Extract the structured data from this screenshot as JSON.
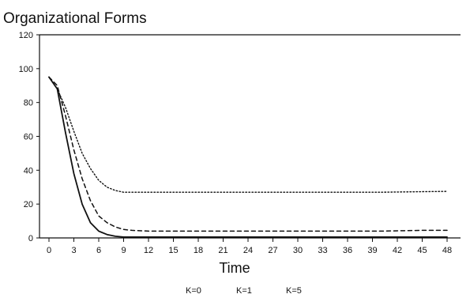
{
  "chart_data": {
    "type": "line",
    "title": "Organizational Forms",
    "xlabel": "Time",
    "ylabel": "",
    "xlim": [
      0,
      50
    ],
    "ylim": [
      0,
      120
    ],
    "xticks": [
      0,
      3,
      6,
      9,
      12,
      15,
      18,
      21,
      24,
      27,
      30,
      33,
      36,
      39,
      42,
      45,
      48
    ],
    "yticks": [
      0,
      20,
      40,
      60,
      80,
      100,
      120
    ],
    "grid": false,
    "legend_position": "bottom-center",
    "series": [
      {
        "name": "K=0",
        "style": "solid",
        "x": [
          0,
          1,
          2,
          3,
          4,
          5,
          6,
          7,
          8,
          9,
          12,
          20,
          30,
          40,
          48
        ],
        "y": [
          95,
          88,
          62,
          38,
          20,
          9,
          4,
          2,
          1,
          0.5,
          0.5,
          0.5,
          0.5,
          0.5,
          0.5
        ]
      },
      {
        "name": "K=1",
        "style": "dashed",
        "x": [
          0,
          1,
          2,
          3,
          4,
          5,
          6,
          7,
          8,
          9,
          10,
          12,
          15,
          20,
          30,
          40,
          45,
          48
        ],
        "y": [
          95,
          90,
          72,
          52,
          35,
          22,
          13,
          9,
          6.5,
          5,
          4.5,
          4,
          4,
          4,
          4,
          4,
          4.5,
          4.5
        ]
      },
      {
        "name": "K=5",
        "style": "dotted",
        "x": [
          0,
          1,
          2,
          3,
          4,
          5,
          6,
          7,
          8,
          9,
          10,
          12,
          15,
          20,
          30,
          40,
          48
        ],
        "y": [
          95,
          88,
          77,
          63,
          50,
          41,
          34,
          30,
          28,
          27,
          27,
          27,
          27,
          27,
          27,
          27,
          27.5
        ]
      }
    ]
  }
}
